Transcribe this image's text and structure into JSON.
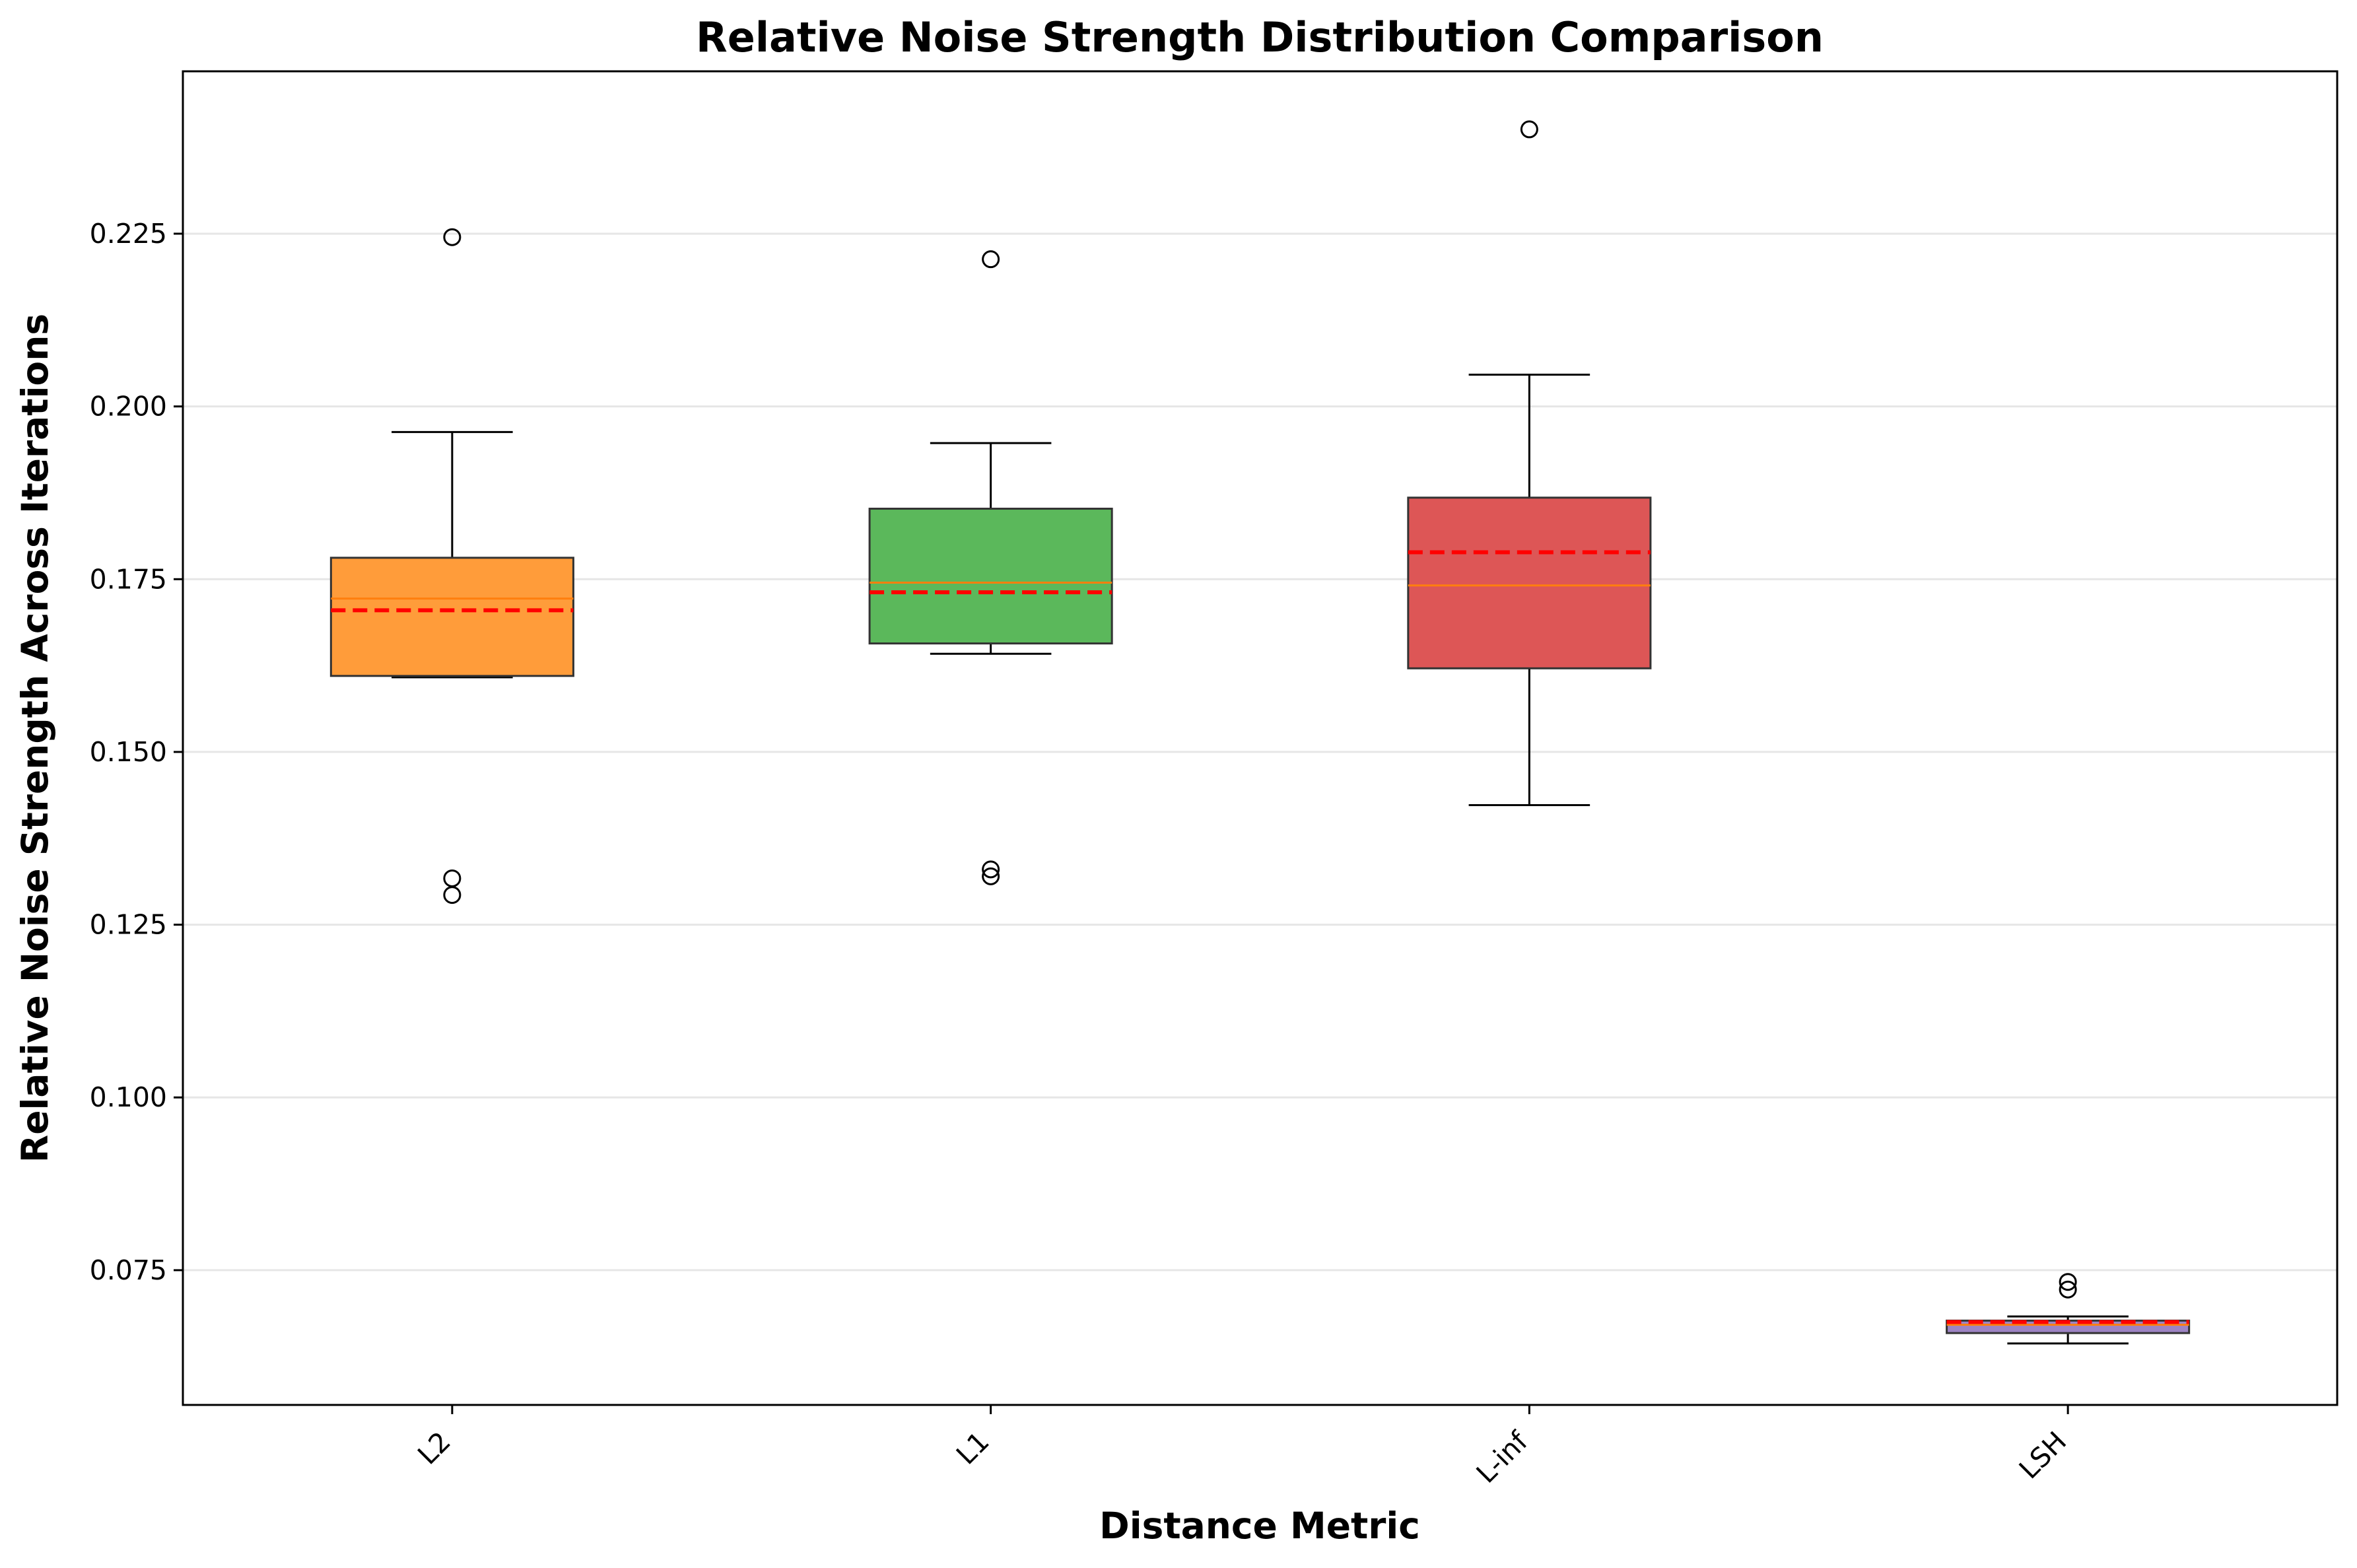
{
  "chart_data": {
    "type": "box",
    "title": "Relative Noise Strength Distribution Comparison",
    "xlabel": "Distance Metric",
    "ylabel": "Relative Noise Strength Across Iterations",
    "ylim": [
      0.0555,
      0.2485
    ],
    "yticks": [
      0.075,
      0.1,
      0.125,
      0.15,
      0.175,
      0.2,
      0.225
    ],
    "ytick_labels": [
      "0.075",
      "0.100",
      "0.125",
      "0.150",
      "0.175",
      "0.200",
      "0.225"
    ],
    "grid": "horizontal",
    "categories": [
      "L2",
      "L1",
      "L-inf",
      "LSH"
    ],
    "xtick_rotation": 45,
    "median_line": "solid orange",
    "mean_line": "dashed red",
    "series": [
      {
        "category": "L2",
        "color": "#ff9c3a",
        "whisker_low": 0.1608,
        "q1": 0.161,
        "median": 0.1722,
        "mean": 0.1705,
        "q3": 0.1781,
        "whisker_high": 0.1963,
        "outliers": [
          0.2245,
          0.1317,
          0.1293
        ]
      },
      {
        "category": "L1",
        "color": "#5bb85b",
        "whisker_low": 0.1642,
        "q1": 0.1657,
        "median": 0.1745,
        "mean": 0.1731,
        "q3": 0.1852,
        "whisker_high": 0.1947,
        "outliers": [
          0.2213,
          0.133,
          0.132
        ]
      },
      {
        "category": "L-inf",
        "color": "#dd5656",
        "whisker_low": 0.1423,
        "q1": 0.1621,
        "median": 0.1741,
        "mean": 0.1789,
        "q3": 0.1868,
        "whisker_high": 0.2046,
        "outliers": [
          0.2401
        ]
      },
      {
        "category": "LSH",
        "color": "#9d84c4",
        "whisker_low": 0.0644,
        "q1": 0.0659,
        "median": 0.0671,
        "mean": 0.0675,
        "q3": 0.0677,
        "whisker_high": 0.0683,
        "outliers": [
          0.0733,
          0.0722
        ]
      }
    ]
  }
}
